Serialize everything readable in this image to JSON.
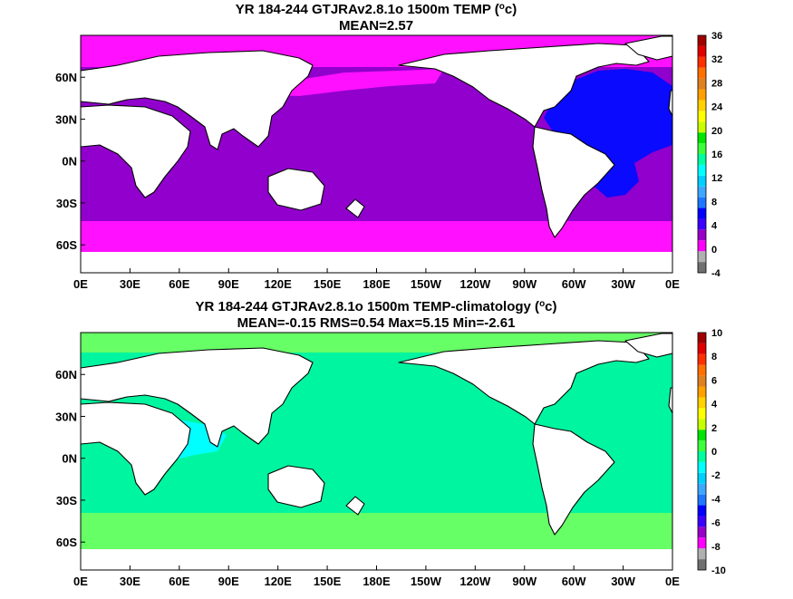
{
  "chart_data": [
    {
      "type": "heatmap",
      "title_prefix": "YR 184-244 GTJRAv2.8.1o 1500m TEMP (",
      "title_sup": "o",
      "title_suffix": "c)",
      "subtitle": "MEAN=2.57",
      "x_ticks": [
        "0E",
        "30E",
        "60E",
        "90E",
        "120E",
        "150E",
        "180E",
        "150W",
        "120W",
        "90W",
        "60W",
        "30W",
        "0E"
      ],
      "y_ticks": [
        "60N",
        "30N",
        "0N",
        "30S",
        "60S"
      ],
      "y_tick_lats": [
        60,
        30,
        0,
        -30,
        -60
      ],
      "lat_range": [
        -80,
        90
      ],
      "colorbar": {
        "labels": [
          "-4",
          "0",
          "4",
          "8",
          "12",
          "16",
          "20",
          "24",
          "28",
          "32",
          "36"
        ],
        "colors": [
          "#707070",
          "#b0b0b0",
          "#ff00ff",
          "#9a00c8",
          "#3c00ff",
          "#0000ff",
          "#1e78ff",
          "#3ca8ff",
          "#00d0ff",
          "#00ffff",
          "#00ffa0",
          "#3cff3c",
          "#00e600",
          "#c8ff00",
          "#ffff00",
          "#ffd200",
          "#ffa000",
          "#e08020",
          "#ff7000",
          "#ff3000",
          "#e00000",
          "#a00000"
        ]
      },
      "fields": {
        "pacific_indian": "#9100cc",
        "high_lat_bands": "#ff10ff",
        "atlantic": "#0a0aff"
      }
    },
    {
      "type": "heatmap",
      "title_prefix": "YR 184-244 GTJRAv2.8.1o 1500m TEMP-climatology (",
      "title_sup": "o",
      "title_suffix": "c)",
      "subtitle": "MEAN=-0.15   RMS=0.54   Max=5.15   Min=-2.61",
      "x_ticks": [
        "0E",
        "30E",
        "60E",
        "90E",
        "120E",
        "150E",
        "180E",
        "150W",
        "120W",
        "90W",
        "60W",
        "30W",
        "0E"
      ],
      "y_ticks": [
        "60N",
        "30N",
        "0N",
        "30S",
        "60S"
      ],
      "y_tick_lats": [
        60,
        30,
        0,
        -30,
        -60
      ],
      "lat_range": [
        -80,
        90
      ],
      "colorbar": {
        "labels": [
          "-10",
          "-8",
          "-6",
          "-4",
          "-2",
          "0",
          "2",
          "4",
          "6",
          "8",
          "10"
        ],
        "colors": [
          "#707070",
          "#b0b0b0",
          "#ff00ff",
          "#9a00c8",
          "#3c00ff",
          "#0000ff",
          "#1e78ff",
          "#3ca8ff",
          "#00d0ff",
          "#00ffff",
          "#00ffa0",
          "#3cff3c",
          "#00e600",
          "#c8ff00",
          "#ffff00",
          "#ffd200",
          "#ffa000",
          "#e08020",
          "#ff7000",
          "#ff3000",
          "#e00000",
          "#a00000"
        ]
      },
      "fields": {
        "main": "#00f5a0",
        "southern_band": "#66ff66",
        "indian_cyan": "#00ffff"
      }
    }
  ]
}
